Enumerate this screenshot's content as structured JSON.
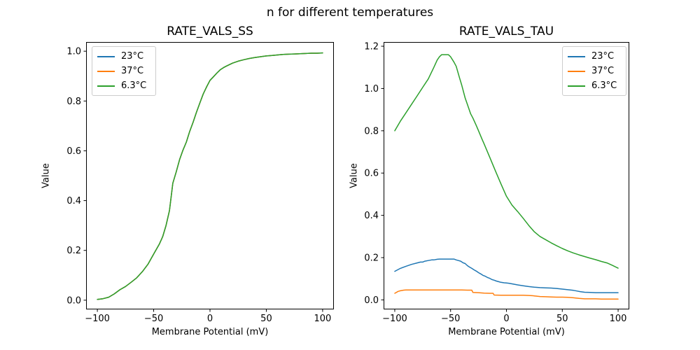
{
  "figure": {
    "suptitle": "n for different temperatures",
    "background": "#ffffff"
  },
  "legend_labels": [
    "23°C",
    "37°C",
    "6.3°C"
  ],
  "series_colors": [
    "#1f77b4",
    "#ff7f0e",
    "#2ca02c"
  ],
  "chart_data": [
    {
      "type": "line",
      "title": "RATE_VALS_SS",
      "xlabel": "Membrane Potential (mV)",
      "ylabel": "Value",
      "xlim": [
        -110,
        110
      ],
      "ylim": [
        -0.037,
        1.037
      ],
      "xticks": [
        -100,
        -50,
        0,
        50,
        100
      ],
      "yticks": [
        0.0,
        0.2,
        0.4,
        0.6,
        0.8,
        1.0
      ],
      "grid": false,
      "legend_position": "upper left",
      "note": "All three temperature curves overlap exactly; only the last-drawn green (6.3°C) curve is visible.",
      "series_names": [
        "23°C",
        "37°C",
        "6.3°C"
      ],
      "series_colors": [
        "#1f77b4",
        "#ff7f0e",
        "#2ca02c"
      ],
      "x": [
        -100,
        -95,
        -90,
        -85,
        -80,
        -75,
        -70,
        -65,
        -60,
        -55,
        -50,
        -45,
        -42,
        -39,
        -36,
        -33,
        -30,
        -27,
        -24,
        -21,
        -18,
        -15,
        -12,
        -9,
        -6,
        -3,
        0,
        3,
        6,
        9,
        12,
        15,
        20,
        25,
        30,
        35,
        40,
        45,
        50,
        55,
        60,
        65,
        70,
        75,
        80,
        85,
        90,
        95,
        100
      ],
      "y_all_series": [
        0.003,
        0.006,
        0.012,
        0.025,
        0.042,
        0.055,
        0.072,
        0.09,
        0.115,
        0.145,
        0.185,
        0.225,
        0.255,
        0.3,
        0.36,
        0.47,
        0.515,
        0.565,
        0.603,
        0.635,
        0.678,
        0.715,
        0.755,
        0.792,
        0.828,
        0.857,
        0.883,
        0.897,
        0.912,
        0.925,
        0.934,
        0.941,
        0.952,
        0.96,
        0.966,
        0.971,
        0.975,
        0.978,
        0.981,
        0.983,
        0.985,
        0.987,
        0.988,
        0.989,
        0.99,
        0.991,
        0.992,
        0.992,
        0.993
      ]
    },
    {
      "type": "line",
      "title": "RATE_VALS_TAU",
      "xlabel": "Membrane Potential (mV)",
      "ylabel": "Value",
      "xlim": [
        -110,
        110
      ],
      "ylim": [
        -0.045,
        1.22
      ],
      "xticks": [
        -100,
        -50,
        0,
        50,
        100
      ],
      "yticks": [
        0.0,
        0.2,
        0.4,
        0.6,
        0.8,
        1.0,
        1.2
      ],
      "grid": false,
      "legend_position": "upper right",
      "series": [
        {
          "name": "23°C",
          "color": "#1f77b4",
          "x": [
            -100,
            -95,
            -90,
            -85,
            -80,
            -77,
            -75,
            -73,
            -70,
            -67,
            -65,
            -62,
            -60,
            -55,
            -50,
            -47,
            -45,
            -43,
            -41,
            -39,
            -37,
            -35,
            -33,
            -31,
            -29,
            -27,
            -25,
            -23,
            -21,
            -19,
            -17,
            -15,
            -13,
            -11,
            -9,
            -7,
            -5,
            -2,
            0,
            2,
            5,
            10,
            15,
            20,
            25,
            30,
            35,
            40,
            45,
            50,
            55,
            60,
            63,
            66,
            70,
            75,
            80,
            85,
            90,
            95,
            100
          ],
          "y": [
            0.135,
            0.149,
            0.159,
            0.168,
            0.175,
            0.179,
            0.179,
            0.183,
            0.186,
            0.189,
            0.189,
            0.192,
            0.193,
            0.193,
            0.193,
            0.193,
            0.189,
            0.186,
            0.183,
            0.176,
            0.172,
            0.162,
            0.155,
            0.149,
            0.142,
            0.136,
            0.129,
            0.123,
            0.116,
            0.112,
            0.106,
            0.102,
            0.096,
            0.093,
            0.089,
            0.086,
            0.083,
            0.081,
            0.08,
            0.079,
            0.076,
            0.071,
            0.067,
            0.063,
            0.06,
            0.058,
            0.057,
            0.056,
            0.054,
            0.051,
            0.048,
            0.045,
            0.042,
            0.039,
            0.036,
            0.035,
            0.034,
            0.034,
            0.034,
            0.034,
            0.034
          ]
        },
        {
          "name": "37°C",
          "color": "#ff7f0e",
          "x": [
            -100,
            -97,
            -95,
            -92,
            -90,
            -80,
            -70,
            -60,
            -50,
            -40,
            -35,
            -31,
            -30,
            -25,
            -20,
            -15,
            -12,
            -11,
            -5,
            0,
            5,
            10,
            15,
            20,
            23,
            25,
            28,
            30,
            35,
            40,
            45,
            50,
            55,
            58,
            60,
            62,
            65,
            68,
            70,
            75,
            80,
            85,
            90,
            95,
            100
          ],
          "y": [
            0.031,
            0.04,
            0.043,
            0.046,
            0.047,
            0.047,
            0.047,
            0.047,
            0.047,
            0.047,
            0.046,
            0.046,
            0.035,
            0.034,
            0.032,
            0.031,
            0.031,
            0.023,
            0.022,
            0.022,
            0.022,
            0.022,
            0.022,
            0.021,
            0.02,
            0.019,
            0.017,
            0.016,
            0.015,
            0.014,
            0.013,
            0.013,
            0.012,
            0.011,
            0.01,
            0.009,
            0.007,
            0.006,
            0.005,
            0.005,
            0.005,
            0.004,
            0.004,
            0.004,
            0.004
          ]
        },
        {
          "name": "6.3°C",
          "color": "#2ca02c",
          "x": [
            -100,
            -95,
            -90,
            -85,
            -80,
            -75,
            -70,
            -65,
            -62,
            -60,
            -58,
            -52,
            -50,
            -47,
            -45,
            -42,
            -40,
            -37,
            -35,
            -32,
            -30,
            -27,
            -25,
            -22,
            -20,
            -15,
            -10,
            -5,
            0,
            5,
            10,
            15,
            20,
            25,
            30,
            35,
            40,
            45,
            50,
            55,
            60,
            65,
            70,
            75,
            80,
            85,
            90,
            95,
            100
          ],
          "y": [
            0.8,
            0.845,
            0.885,
            0.925,
            0.965,
            1.005,
            1.045,
            1.1,
            1.135,
            1.15,
            1.16,
            1.16,
            1.15,
            1.125,
            1.105,
            1.05,
            1.015,
            0.955,
            0.925,
            0.88,
            0.86,
            0.825,
            0.8,
            0.762,
            0.738,
            0.675,
            0.612,
            0.55,
            0.49,
            0.448,
            0.418,
            0.386,
            0.352,
            0.322,
            0.3,
            0.285,
            0.27,
            0.256,
            0.243,
            0.232,
            0.222,
            0.213,
            0.205,
            0.197,
            0.19,
            0.182,
            0.175,
            0.163,
            0.15
          ]
        }
      ]
    }
  ]
}
